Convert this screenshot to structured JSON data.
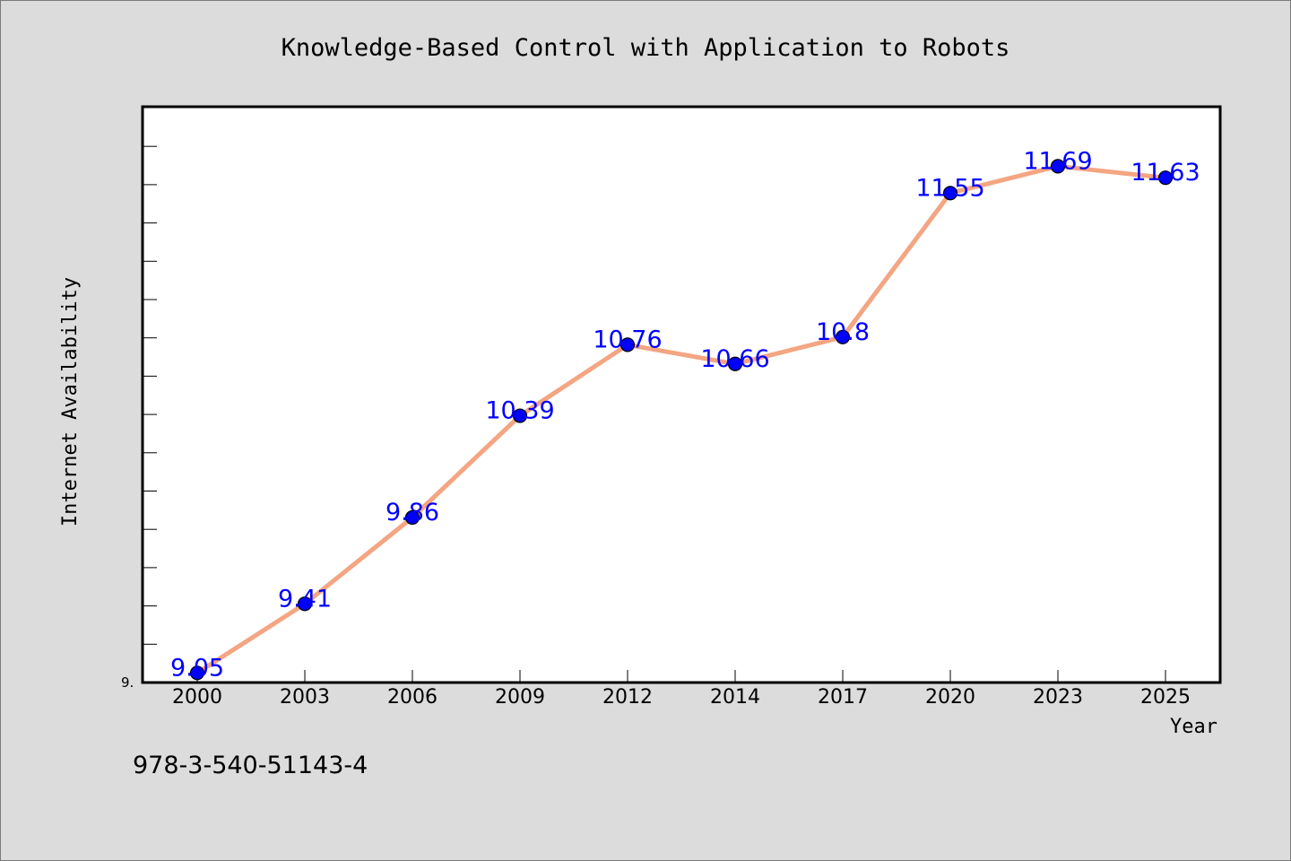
{
  "chart_data": {
    "type": "line",
    "title": "Knowledge-Based Control with Application to Robots",
    "xlabel": "Year",
    "ylabel": "Internet Availability",
    "categories": [
      "2000",
      "2003",
      "2006",
      "2009",
      "2012",
      "2014",
      "2017",
      "2020",
      "2023",
      "2025"
    ],
    "series": [
      {
        "values": [
          9.05,
          9.41,
          9.86,
          10.39,
          10.76,
          10.66,
          10.8,
          11.55,
          11.69,
          11.63
        ]
      }
    ],
    "data_labels": [
      "9.05",
      "9.41",
      "9.86",
      "10.39",
      "10.76",
      "10.66",
      "10.8",
      "11.55",
      "11.69",
      "11.63"
    ],
    "ylim": [
      9.0,
      12.0
    ],
    "ytick_labels": [
      "9."
    ],
    "grid": false,
    "colors": {
      "line": "#f4a582",
      "marker": "#0000ff",
      "data_label": "#0000ff",
      "background": "#dcdcdc",
      "plot_area": "#ffffff"
    }
  },
  "footer": {
    "isbn": "978-3-540-51143-4"
  }
}
